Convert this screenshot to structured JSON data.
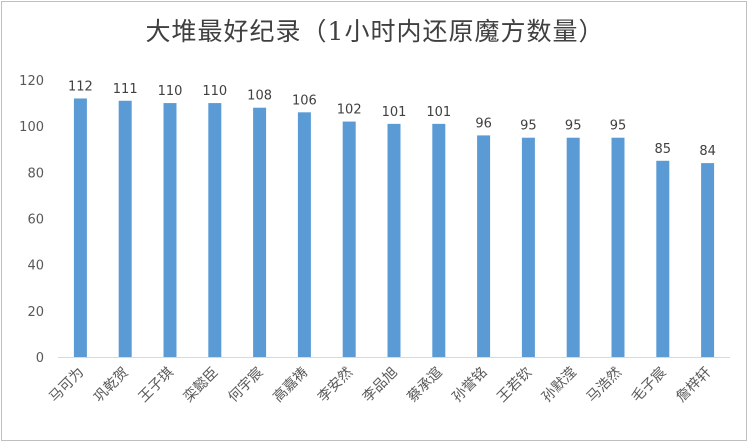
{
  "chart_data": {
    "type": "bar",
    "title": "大堆最好纪录（1小时内还原魔方数量）",
    "xlabel": "",
    "ylabel": "",
    "ylim": [
      0,
      120
    ],
    "yticks": [
      0,
      20,
      40,
      60,
      80,
      100,
      120
    ],
    "grid": false,
    "legend": "none",
    "bar_color": "#5b9bd5",
    "categories": [
      "马可为",
      "巩乾贺",
      "王子琪",
      "栾懿臣",
      "何宇宸",
      "高嘉祷",
      "李安然",
      "李品旭",
      "蔡承逭",
      "孙誉铭",
      "王若钦",
      "孙默滢",
      "马浩然",
      "毛子宸",
      "詹梓轩"
    ],
    "values": [
      112,
      111,
      110,
      110,
      108,
      106,
      102,
      101,
      101,
      96,
      95,
      95,
      95,
      85,
      84
    ]
  }
}
